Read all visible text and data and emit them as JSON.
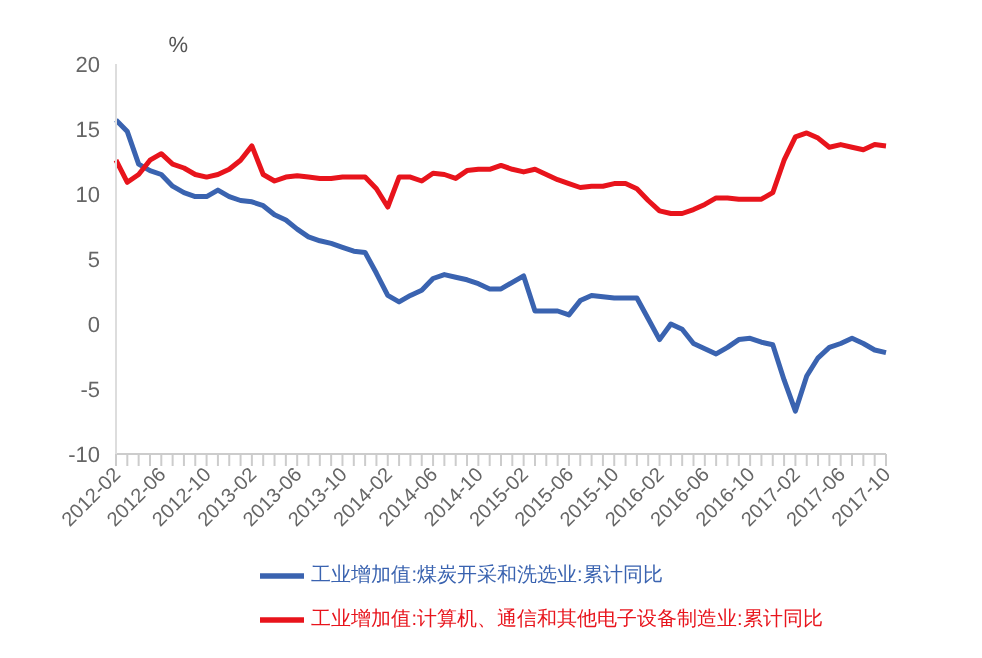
{
  "chart_data": {
    "type": "line",
    "ylabel": "%",
    "categories": [
      "2012-02",
      null,
      null,
      null,
      "2012-06",
      null,
      null,
      null,
      "2012-10",
      null,
      null,
      null,
      "2013-02",
      null,
      null,
      null,
      "2013-06",
      null,
      null,
      null,
      "2013-10",
      null,
      null,
      null,
      "2014-02",
      null,
      null,
      null,
      "2014-06",
      null,
      null,
      null,
      "2014-10",
      null,
      null,
      null,
      "2015-02",
      null,
      null,
      null,
      "2015-06",
      null,
      null,
      null,
      "2015-10",
      null,
      null,
      null,
      "2016-02",
      null,
      null,
      null,
      "2016-06",
      null,
      null,
      null,
      "2016-10",
      null,
      null,
      null,
      "2017-02",
      null,
      null,
      null,
      "2017-06",
      null,
      null,
      null,
      "2017-10"
    ],
    "series": [
      {
        "name": "工业增加值:煤炭开采和洗选业:累计同比",
        "color": "#3a63b0",
        "values": [
          15.7,
          14.8,
          12.3,
          11.8,
          11.5,
          10.6,
          10.1,
          9.8,
          9.8,
          10.3,
          9.8,
          9.5,
          9.4,
          9.1,
          8.4,
          8.0,
          7.3,
          6.7,
          6.4,
          6.2,
          5.9,
          5.6,
          5.5,
          3.9,
          2.2,
          1.7,
          2.2,
          2.6,
          3.5,
          3.8,
          3.6,
          3.4,
          3.1,
          2.7,
          2.7,
          3.2,
          3.7,
          1.0,
          1.0,
          1.0,
          0.7,
          1.8,
          2.2,
          2.1,
          2.0,
          2.0,
          2.0,
          0.4,
          -1.2,
          0,
          -0.4,
          -1.5,
          -1.9,
          -2.3,
          -1.8,
          -1.2,
          -1.1,
          -1.4,
          -1.6,
          -4.3,
          -6.7,
          -4.0,
          -2.6,
          -1.8,
          -1.5,
          -1.1,
          -1.5,
          -2.0,
          -2.2
        ]
      },
      {
        "name": "工业增加值:计算机、通信和其他电子设备制造业:累计同比",
        "color": "#e8141c",
        "values": [
          12.6,
          10.9,
          11.5,
          12.6,
          13.1,
          12.3,
          12.0,
          11.5,
          11.3,
          11.5,
          11.9,
          12.6,
          13.7,
          11.5,
          11.0,
          11.3,
          11.4,
          11.3,
          11.2,
          11.2,
          11.3,
          11.3,
          11.3,
          10.4,
          9.0,
          11.3,
          11.3,
          11.0,
          11.6,
          11.5,
          11.2,
          11.8,
          11.9,
          11.9,
          12.2,
          11.9,
          11.7,
          11.9,
          11.5,
          11.1,
          10.8,
          10.5,
          10.6,
          10.6,
          10.8,
          10.8,
          10.4,
          9.5,
          8.7,
          8.5,
          8.5,
          8.8,
          9.2,
          9.7,
          9.7,
          9.6,
          9.6,
          9.6,
          10.1,
          12.6,
          14.4,
          14.7,
          14.3,
          13.6,
          13.8,
          13.6,
          13.4,
          13.8,
          13.7
        ]
      }
    ],
    "ylim": [
      -10,
      20
    ],
    "yticks": [
      -10,
      -5,
      0,
      5,
      10,
      15,
      20
    ],
    "grid": false,
    "legend": "bottom",
    "marker": "none",
    "line_style": "solid"
  }
}
